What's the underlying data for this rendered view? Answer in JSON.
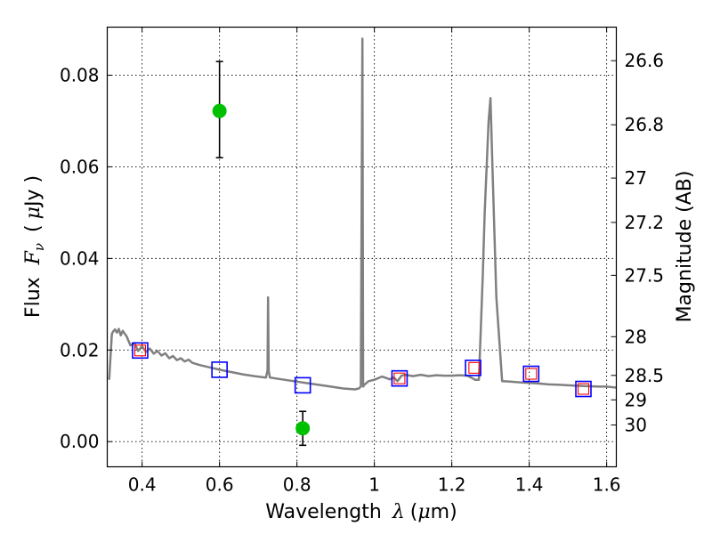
{
  "chart_data": {
    "type": "scatter",
    "xlabel_prefix": "Wavelength",
    "xlabel_symbol": "λ",
    "xlabel_unit_open": "(",
    "xlabel_unit_mu": "μ",
    "xlabel_unit_rest": "m)",
    "ylabel_prefix": "Flux",
    "ylabel_symbol": "F",
    "ylabel_sub": "ν",
    "ylabel_unit_open": "(",
    "ylabel_unit_mu": "μ",
    "ylabel_unit_rest": "Jy )",
    "y2label": "Magnitude (AB)",
    "xlim": [
      0.31,
      1.625
    ],
    "ylim": [
      -0.0055,
      0.0905
    ],
    "grid": true,
    "x_ticks": [
      {
        "v": 0.4,
        "label": "0.4"
      },
      {
        "v": 0.6,
        "label": "0.6"
      },
      {
        "v": 0.8,
        "label": "0.8"
      },
      {
        "v": 1.0,
        "label": "1"
      },
      {
        "v": 1.2,
        "label": "1.2"
      },
      {
        "v": 1.4,
        "label": "1.4"
      },
      {
        "v": 1.6,
        "label": "1.6"
      }
    ],
    "y_ticks": [
      {
        "v": 0.0,
        "label": "0.00"
      },
      {
        "v": 0.02,
        "label": "0.02"
      },
      {
        "v": 0.04,
        "label": "0.04"
      },
      {
        "v": 0.06,
        "label": "0.06"
      },
      {
        "v": 0.08,
        "label": "0.08"
      }
    ],
    "magnitude_ticks": [
      {
        "v": 26.6,
        "label": "26.6"
      },
      {
        "v": 26.8,
        "label": "26.8"
      },
      {
        "v": 27.0,
        "label": "27"
      },
      {
        "v": 27.2,
        "label": "27.2"
      },
      {
        "v": 27.5,
        "label": "27.5"
      },
      {
        "v": 28.0,
        "label": "28"
      },
      {
        "v": 28.5,
        "label": "28.5"
      },
      {
        "v": 29.0,
        "label": "29"
      },
      {
        "v": 30.0,
        "label": "30"
      }
    ],
    "model_sed": {
      "name": "model spectrum",
      "color": "#808080",
      "x": [
        0.315,
        0.318,
        0.322,
        0.325,
        0.33,
        0.335,
        0.34,
        0.345,
        0.35,
        0.36,
        0.37,
        0.38,
        0.39,
        0.4,
        0.41,
        0.42,
        0.43,
        0.44,
        0.45,
        0.46,
        0.47,
        0.48,
        0.49,
        0.5,
        0.51,
        0.52,
        0.53,
        0.55,
        0.57,
        0.6,
        0.63,
        0.66,
        0.69,
        0.72,
        0.724,
        0.7255,
        0.727,
        0.73,
        0.76,
        0.8,
        0.84,
        0.88,
        0.92,
        0.95,
        0.96,
        0.965,
        0.969,
        0.971,
        0.975,
        0.985,
        1.0,
        1.02,
        1.04,
        1.05,
        1.06,
        1.07,
        1.08,
        1.1,
        1.12,
        1.14,
        1.16,
        1.18,
        1.2,
        1.22,
        1.24,
        1.25,
        1.26,
        1.27,
        1.28,
        1.285,
        1.295,
        1.3,
        1.305,
        1.315,
        1.33,
        1.35,
        1.38,
        1.4,
        1.42,
        1.45,
        1.48,
        1.5,
        1.52,
        1.55,
        1.58,
        1.6,
        1.625
      ],
      "y": [
        0.0135,
        0.018,
        0.0235,
        0.024,
        0.0245,
        0.0238,
        0.0246,
        0.0232,
        0.0242,
        0.023,
        0.021,
        0.0215,
        0.0198,
        0.0208,
        0.0196,
        0.0203,
        0.0192,
        0.0198,
        0.0188,
        0.0193,
        0.0182,
        0.0187,
        0.0178,
        0.0182,
        0.0175,
        0.0179,
        0.0172,
        0.0167,
        0.0163,
        0.0157,
        0.0152,
        0.0147,
        0.0143,
        0.014,
        0.0155,
        0.0315,
        0.0155,
        0.014,
        0.0136,
        0.0131,
        0.0126,
        0.0121,
        0.0116,
        0.0114,
        0.0116,
        0.012,
        0.088,
        0.012,
        0.0125,
        0.0132,
        0.0135,
        0.0142,
        0.0136,
        0.014,
        0.0132,
        0.0144,
        0.0146,
        0.0143,
        0.0146,
        0.0143,
        0.0145,
        0.0144,
        0.0144,
        0.0145,
        0.0144,
        0.014,
        0.0135,
        0.0135,
        0.036,
        0.05,
        0.07,
        0.075,
        0.06,
        0.0315,
        0.0132,
        0.0131,
        0.0129,
        0.0128,
        0.0127,
        0.0125,
        0.0124,
        0.0123,
        0.0122,
        0.0121,
        0.012,
        0.012,
        0.0118
      ]
    },
    "photometry": {
      "name": "observed",
      "color": "#00c000",
      "points": [
        {
          "x": 0.6,
          "y": 0.0722,
          "err_low": 0.062,
          "err_high": 0.083
        },
        {
          "x": 0.815,
          "y": 0.0029,
          "err_low": -0.0008,
          "err_high": 0.0066
        }
      ]
    },
    "model_photometry": {
      "name": "model bands",
      "color": "#0000ff",
      "points": [
        {
          "x": 0.395,
          "y": 0.0199
        },
        {
          "x": 0.6,
          "y": 0.0157
        },
        {
          "x": 0.815,
          "y": 0.0123
        },
        {
          "x": 1.065,
          "y": 0.0138
        },
        {
          "x": 1.255,
          "y": 0.0161
        },
        {
          "x": 1.405,
          "y": 0.0148
        },
        {
          "x": 1.54,
          "y": 0.0115
        }
      ]
    },
    "inner_markers": {
      "name": "inner markers",
      "color": "#ff0000",
      "points": [
        {
          "x": 0.395,
          "y": 0.0199
        },
        {
          "x": 1.065,
          "y": 0.0138
        },
        {
          "x": 1.258,
          "y": 0.0161
        },
        {
          "x": 1.405,
          "y": 0.0148
        },
        {
          "x": 1.54,
          "y": 0.0115
        }
      ]
    }
  }
}
